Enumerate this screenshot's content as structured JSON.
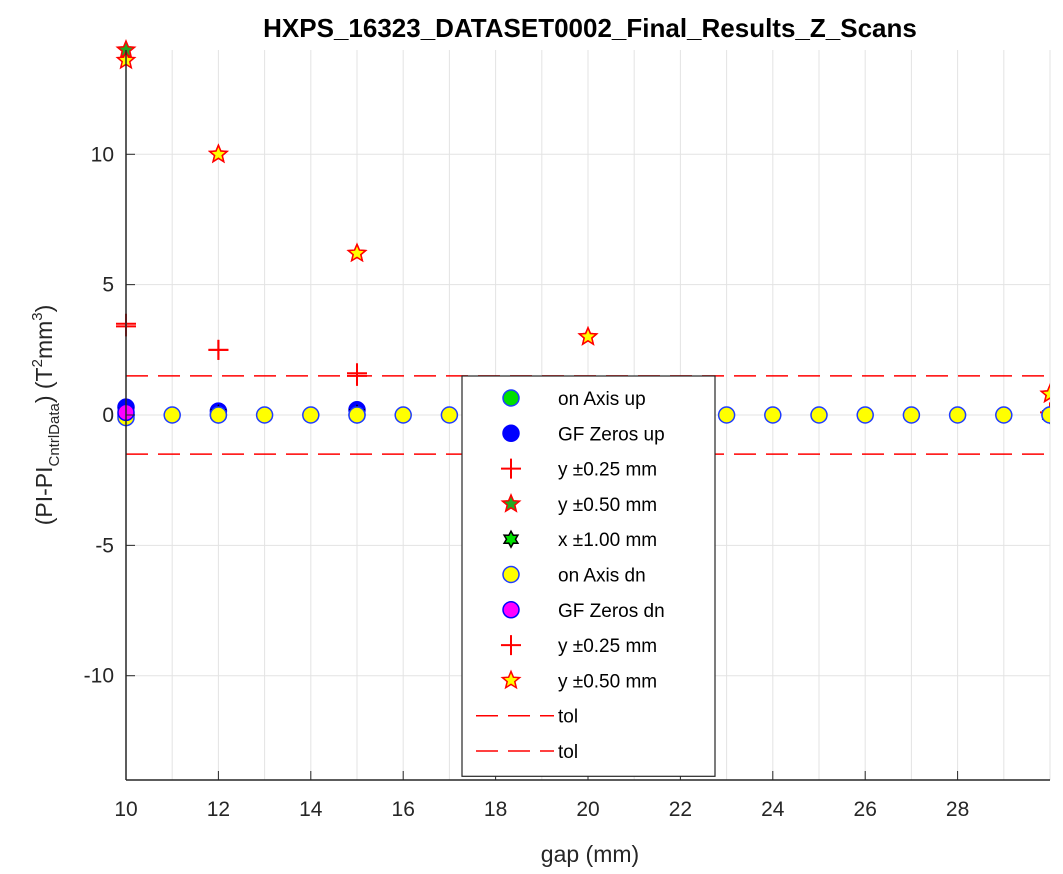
{
  "chart_data": {
    "type": "scatter",
    "title": "HXPS_16323_DATASET0002_Final_Results_Z_Scans",
    "xlabel": "gap (mm)",
    "ylabel": {
      "prefix": "(PI-PI",
      "sub": "CntrlData",
      "mid": ") (T",
      "sup1": "2",
      "mid2": "mm",
      "sup2": "3",
      "suffix": ")"
    },
    "xlim": [
      10,
      30
    ],
    "ylim": [
      -14,
      14
    ],
    "xticks": [
      10,
      12,
      14,
      16,
      18,
      20,
      22,
      24,
      26,
      28
    ],
    "yticks": [
      -10,
      -5,
      0,
      5,
      10
    ],
    "grid": true,
    "legend_position": "center",
    "series": [
      {
        "name": "on Axis up",
        "marker": "circle",
        "fill": "#00e000",
        "edge": "#1f3cff",
        "points": [
          [
            10,
            0.0
          ],
          [
            12,
            0.0
          ],
          [
            15,
            0.0
          ],
          [
            20,
            0.0
          ],
          [
            30,
            0.0
          ]
        ]
      },
      {
        "name": "GF Zeros up",
        "marker": "circle",
        "fill": "#0000ff",
        "edge": "#0000ff",
        "points": [
          [
            10,
            0.3
          ],
          [
            12,
            0.15
          ],
          [
            15,
            0.2
          ]
        ]
      },
      {
        "name": "y ±0.25 mm",
        "marker": "plus",
        "fill": "none",
        "edge": "#ff0000",
        "points": [
          [
            10,
            3.5
          ],
          [
            12,
            2.5
          ],
          [
            15,
            1.5
          ],
          [
            20,
            0.0
          ],
          [
            30,
            0.1
          ]
        ]
      },
      {
        "name": "y ±0.50 mm",
        "marker": "star",
        "fill": "#22aa22",
        "edge": "#ff0000",
        "points": [
          [
            10,
            14.0
          ],
          [
            12,
            10.0
          ],
          [
            15,
            6.2
          ],
          [
            20,
            3.0
          ],
          [
            30,
            0.8
          ]
        ]
      },
      {
        "name": "x ±1.00 mm",
        "marker": "hexagram",
        "fill": "#00e000",
        "edge": "#000000",
        "points": [
          [
            10,
            0.1
          ],
          [
            12,
            0.05
          ],
          [
            15,
            0.05
          ],
          [
            20,
            0.0
          ],
          [
            30,
            0.0
          ]
        ]
      },
      {
        "name": "on Axis dn",
        "marker": "circle",
        "fill": "#ffff00",
        "edge": "#1f3cff",
        "points": [
          [
            10,
            -0.1
          ],
          [
            11,
            0
          ],
          [
            12,
            0
          ],
          [
            13,
            0
          ],
          [
            14,
            0
          ],
          [
            15,
            0
          ],
          [
            16,
            0
          ],
          [
            17,
            0
          ],
          [
            18,
            0
          ],
          [
            19,
            0
          ],
          [
            20,
            0
          ],
          [
            21,
            0
          ],
          [
            22,
            0
          ],
          [
            23,
            0
          ],
          [
            24,
            0
          ],
          [
            25,
            0
          ],
          [
            26,
            0
          ],
          [
            27,
            0
          ],
          [
            28,
            0
          ],
          [
            29,
            0
          ],
          [
            30,
            0
          ]
        ]
      },
      {
        "name": "GF Zeros dn",
        "marker": "circle",
        "fill": "#ff00ff",
        "edge": "#0000ff",
        "points": [
          [
            10,
            0.1
          ]
        ]
      },
      {
        "name": "y ±0.25 mm",
        "marker": "plus",
        "fill": "none",
        "edge": "#ff0000",
        "points": [
          [
            10,
            3.4
          ],
          [
            12,
            2.5
          ],
          [
            15,
            1.6
          ]
        ]
      },
      {
        "name": "y ±0.50 mm",
        "marker": "star",
        "fill": "#ffff00",
        "edge": "#ff0000",
        "points": [
          [
            10,
            13.6
          ],
          [
            12,
            10.0
          ],
          [
            15,
            6.2
          ],
          [
            20,
            3.0
          ],
          [
            30,
            0.8
          ]
        ]
      }
    ],
    "reference_lines": [
      {
        "name": "tol",
        "y": 1.5,
        "color": "#ff0000",
        "style": "dashed"
      },
      {
        "name": "tol",
        "y": -1.5,
        "color": "#ff0000",
        "style": "dashed"
      }
    ]
  }
}
